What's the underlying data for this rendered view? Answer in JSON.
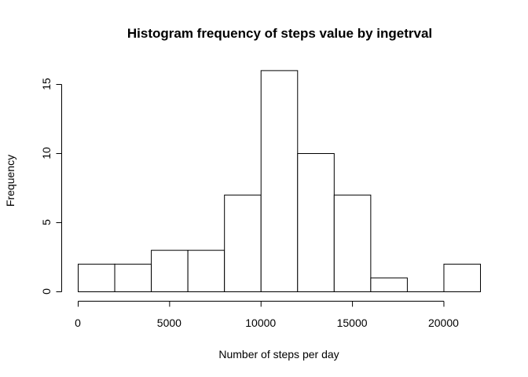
{
  "chart_data": {
    "type": "bar",
    "title": "Histogram frequency of steps value by ingetrval",
    "xlabel": "Number of steps per day",
    "ylabel": "Frequency",
    "xlim": [
      0,
      22000
    ],
    "ylim": [
      0,
      16
    ],
    "x_ticks": [
      0,
      5000,
      10000,
      15000,
      20000
    ],
    "y_ticks": [
      0,
      5,
      10,
      15
    ],
    "bins": [
      {
        "start": 0,
        "end": 2000,
        "count": 2
      },
      {
        "start": 2000,
        "end": 4000,
        "count": 2
      },
      {
        "start": 4000,
        "end": 6000,
        "count": 3
      },
      {
        "start": 6000,
        "end": 8000,
        "count": 3
      },
      {
        "start": 8000,
        "end": 10000,
        "count": 7
      },
      {
        "start": 10000,
        "end": 12000,
        "count": 16
      },
      {
        "start": 12000,
        "end": 14000,
        "count": 10
      },
      {
        "start": 14000,
        "end": 16000,
        "count": 7
      },
      {
        "start": 16000,
        "end": 18000,
        "count": 1
      },
      {
        "start": 18000,
        "end": 20000,
        "count": 0
      },
      {
        "start": 20000,
        "end": 22000,
        "count": 2
      }
    ],
    "grid": false,
    "legend": "none"
  }
}
